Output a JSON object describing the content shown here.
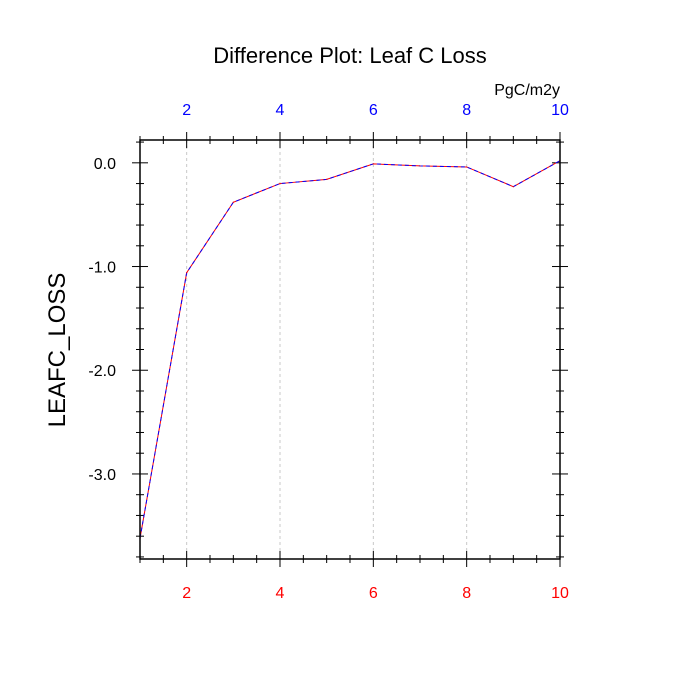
{
  "chart_data": {
    "type": "line",
    "title": "Difference Plot: Leaf C Loss",
    "ylabel": "LEAFC_LOSS",
    "units_label": "PgC/m2y",
    "xlim": [
      1,
      10
    ],
    "ylim": [
      -3.82,
      0.22
    ],
    "x_ticks": [
      2,
      4,
      6,
      8,
      10
    ],
    "x_tick_labels_bottom": [
      "2",
      "4",
      "6",
      "8",
      "10"
    ],
    "x_tick_labels_top": [
      "2",
      "4",
      "6",
      "8",
      "10"
    ],
    "y_ticks": [
      0.0,
      -1.0,
      -2.0,
      -3.0
    ],
    "y_tick_labels": [
      "0.0",
      "-1.0",
      "-2.0",
      "-3.0"
    ],
    "grid": "vertical dashed at major x ticks",
    "series": [
      {
        "x": [
          1,
          2,
          3,
          4,
          5,
          6,
          7,
          8,
          9,
          10
        ],
        "y": [
          -3.62,
          -1.06,
          -0.38,
          -0.2,
          -0.16,
          -0.01,
          -0.03,
          -0.04,
          -0.23,
          0.02
        ],
        "color": "#ff0000",
        "overlay_color": "#0000ff",
        "style": "dashed"
      }
    ],
    "colors": {
      "bottom_ticks": "#ff0000",
      "top_ticks": "#0000ff",
      "axes": "#000000"
    }
  }
}
